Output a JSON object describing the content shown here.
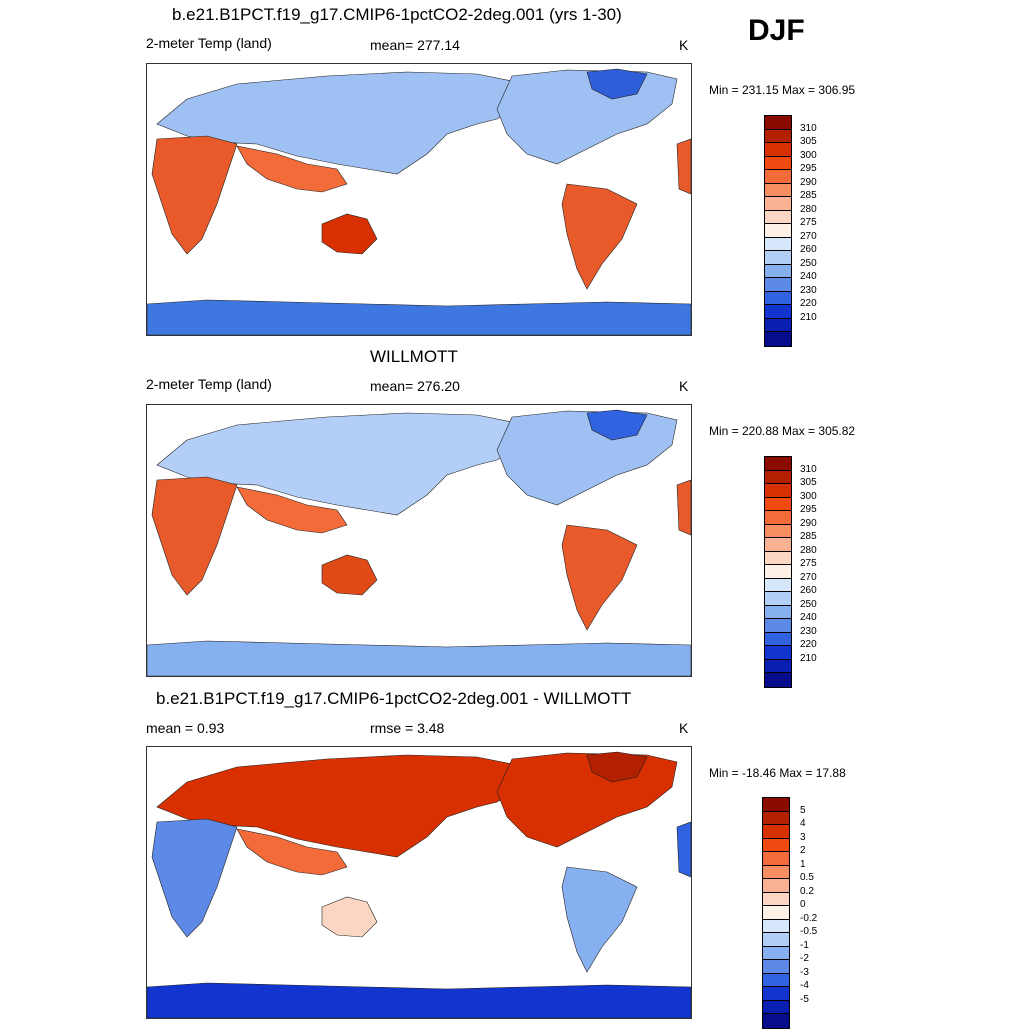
{
  "season": "DJF",
  "panels": [
    {
      "title": "b.e21.B1PCT.f19_g17.CMIP6-1pctCO2-2deg.001 (yrs 1-30)",
      "left_label": "2-meter Temp (land)",
      "center_label": "mean= 277.14",
      "units": "K",
      "minmax": "Min = 231.15 Max = 306.95",
      "kind": "abs"
    },
    {
      "title": "WILLMOTT",
      "left_label": "2-meter Temp (land)",
      "center_label": "mean= 276.20",
      "units": "K",
      "minmax": "Min = 220.88 Max = 305.82",
      "kind": "abs"
    },
    {
      "title": "b.e21.B1PCT.f19_g17.CMIP6-1pctCO2-2deg.001 - WILLMOTT",
      "left_label": "mean =   0.93",
      "center_label": "rmse =   3.48",
      "units": "K",
      "minmax": "Min = -18.46 Max =  17.88",
      "kind": "diff"
    }
  ],
  "colorbars": {
    "abs": {
      "labels": [
        "310",
        "305",
        "300",
        "295",
        "290",
        "285",
        "280",
        "275",
        "270",
        "260",
        "250",
        "240",
        "230",
        "220",
        "210"
      ],
      "colors": [
        "#8b0a00",
        "#b32000",
        "#d83000",
        "#f04a10",
        "#f46b3a",
        "#f78e62",
        "#f9b394",
        "#fbd6c2",
        "#fdf0e6",
        "#d7e7fb",
        "#b3cff7",
        "#87b0f0",
        "#5c8ae6",
        "#3163e0",
        "#1235d0",
        "#0a1fb0",
        "#060c8a"
      ]
    },
    "diff": {
      "labels": [
        "5",
        "4",
        "3",
        "2",
        "1",
        "0.5",
        "0.2",
        "0",
        "-0.2",
        "-0.5",
        "-1",
        "-2",
        "-3",
        "-4",
        "-5"
      ],
      "colors": [
        "#8b0a00",
        "#b32000",
        "#d83000",
        "#f04a10",
        "#f46b3a",
        "#f78e62",
        "#f9b394",
        "#fbd6c2",
        "#fdf0e6",
        "#d7e7fb",
        "#b3cff7",
        "#87b0f0",
        "#5c8ae6",
        "#3163e0",
        "#1235d0",
        "#0a1fb0",
        "#060c8a"
      ]
    }
  }
}
